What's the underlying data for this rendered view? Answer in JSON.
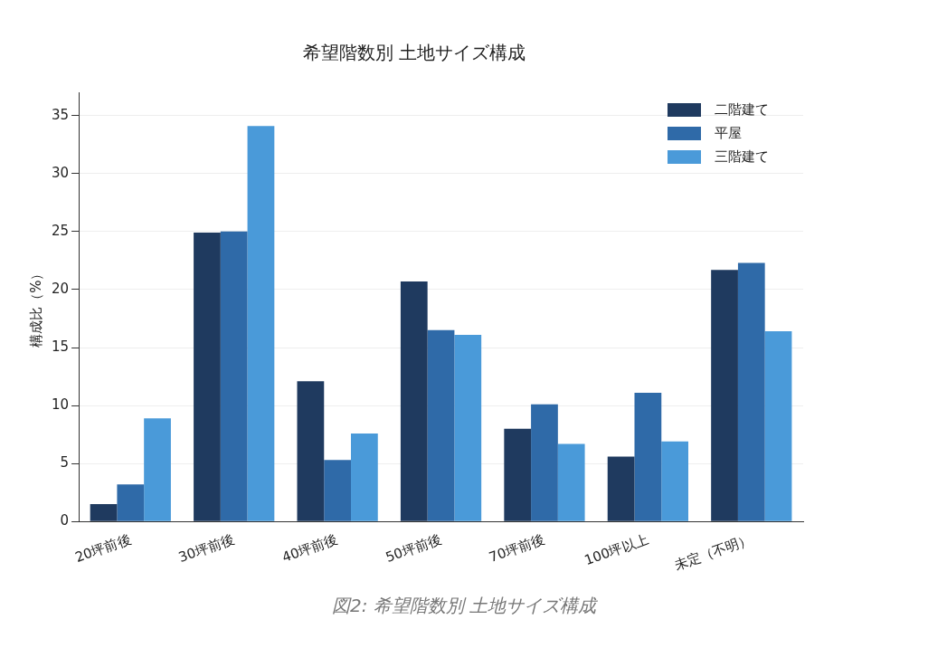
{
  "chart_data": {
    "type": "bar",
    "title": "希望階数別 土地サイズ構成",
    "ylabel": "構成比（%）",
    "categories": [
      "20坪前後",
      "30坪前後",
      "40坪前後",
      "50坪前後",
      "70坪前後",
      "100坪以上",
      "未定（不明）"
    ],
    "series": [
      {
        "name": "二階建て",
        "color": "#1f3a5f",
        "values": [
          1.5,
          24.9,
          12.1,
          20.7,
          8.0,
          5.6,
          21.7
        ]
      },
      {
        "name": "平屋",
        "color": "#2f6aa8",
        "values": [
          3.2,
          25.0,
          5.3,
          16.5,
          10.1,
          11.1,
          22.3
        ]
      },
      {
        "name": "三階建て",
        "color": "#4a9ad9",
        "values": [
          8.9,
          34.1,
          7.6,
          16.1,
          6.7,
          6.9,
          16.4
        ]
      }
    ],
    "ylim": [
      0,
      37
    ],
    "yticks": [
      0,
      5,
      10,
      15,
      20,
      25,
      30,
      35
    ],
    "grid": "y",
    "legend": "top right",
    "annotations": [
      "図2: 希望階数別 土地サイズ構成"
    ]
  }
}
